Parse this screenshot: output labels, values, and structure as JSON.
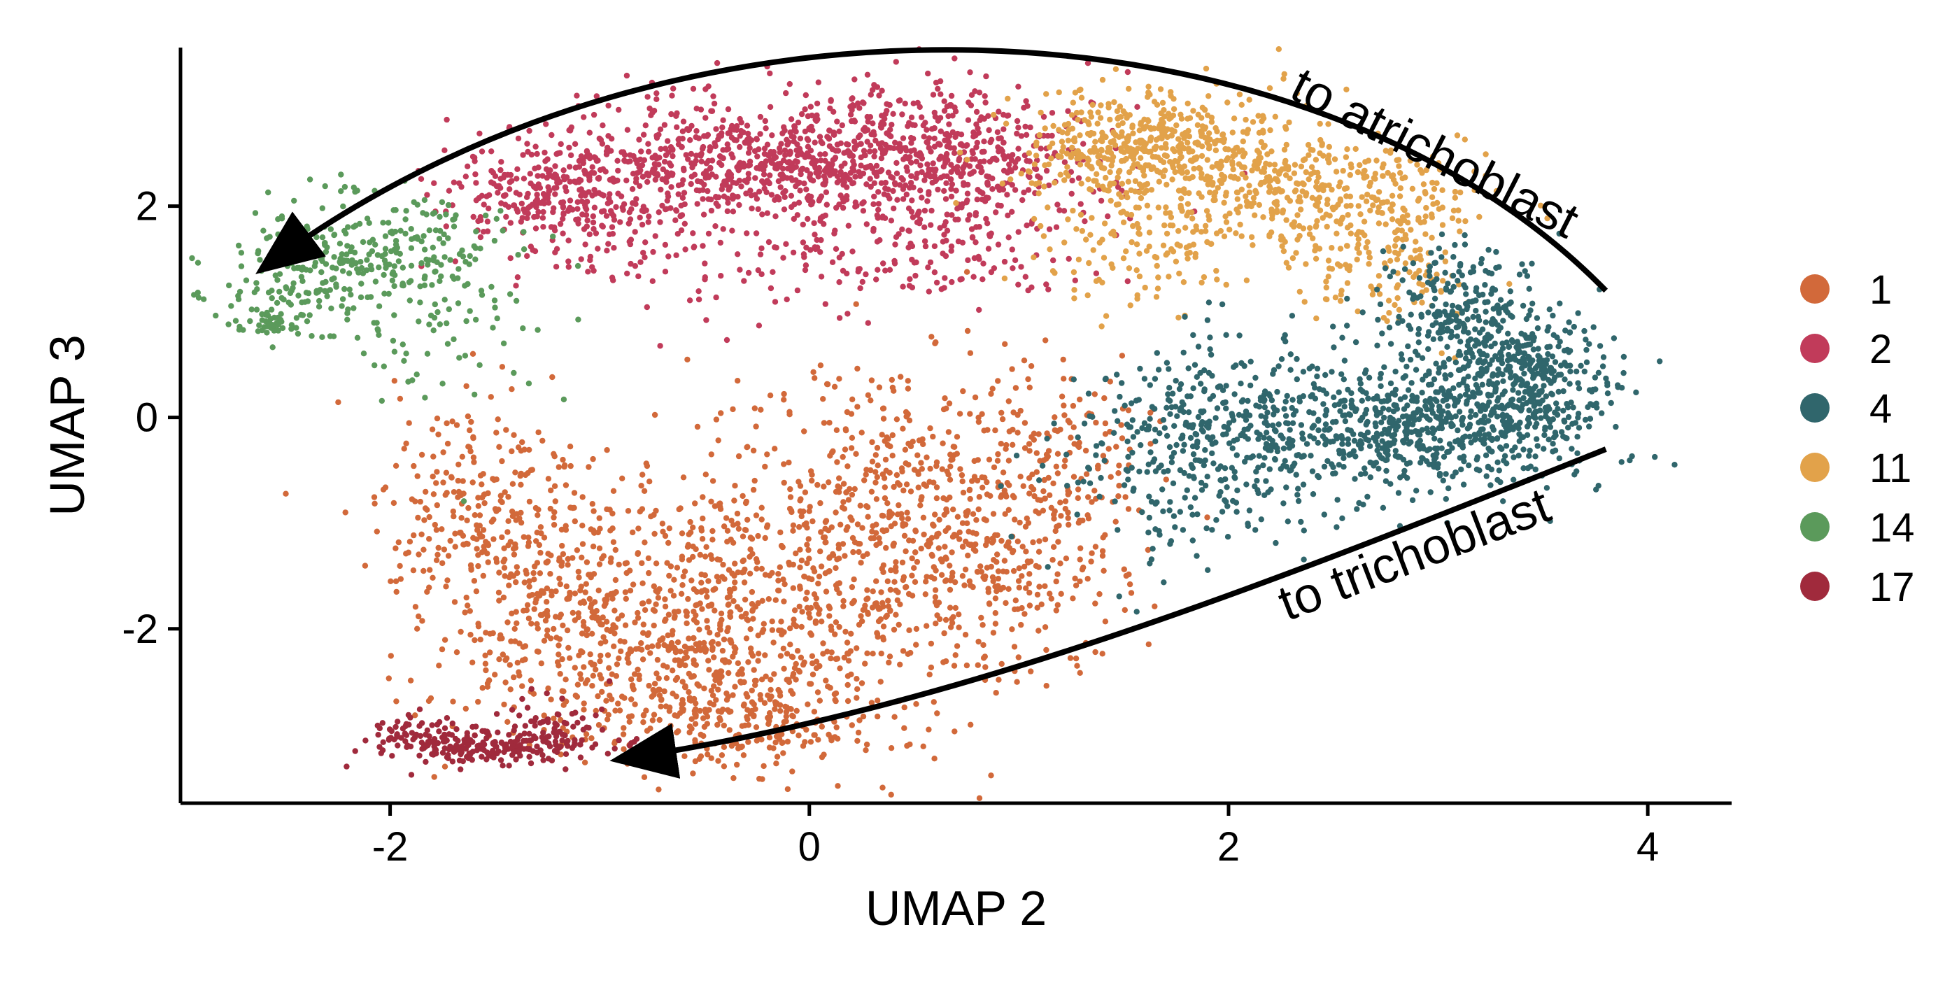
{
  "chart_data": {
    "type": "scatter",
    "title": "",
    "xlabel": "UMAP 2",
    "ylabel": "UMAP 3",
    "xlim": [
      -3.0,
      4.4
    ],
    "ylim": [
      -3.65,
      3.5
    ],
    "xticks": [
      -2,
      0,
      2,
      4
    ],
    "xtick_labels": [
      "-2",
      "0",
      "2",
      "4"
    ],
    "yticks": [
      -2,
      0,
      2
    ],
    "ytick_labels": [
      "-2",
      "0",
      "2"
    ],
    "grid": false,
    "legend_position": "right",
    "annotations": [
      {
        "text": "to atrichoblast",
        "arrow_from": [
          3.8,
          1.2
        ],
        "arrow_to": [
          -2.7,
          1.3
        ]
      },
      {
        "text": "to trichoblast",
        "arrow_from": [
          3.8,
          -0.3
        ],
        "arrow_to": [
          -1.0,
          -3.3
        ]
      }
    ],
    "series": [
      {
        "name": "1",
        "color": "#D2693A",
        "clusters": [
          {
            "cx": -1.6,
            "cy": -1.0,
            "sx": 0.22,
            "sy": 0.6,
            "n": 220
          },
          {
            "cx": -1.1,
            "cy": -1.6,
            "sx": 0.35,
            "sy": 0.6,
            "n": 320
          },
          {
            "cx": -0.7,
            "cy": -2.4,
            "sx": 0.45,
            "sy": 0.45,
            "n": 380
          },
          {
            "cx": -0.1,
            "cy": -1.6,
            "sx": 0.45,
            "sy": 0.7,
            "n": 520
          },
          {
            "cx": 0.5,
            "cy": -0.7,
            "sx": 0.4,
            "sy": 0.7,
            "n": 380
          },
          {
            "cx": 0.9,
            "cy": -1.4,
            "sx": 0.3,
            "sy": 0.45,
            "n": 200
          },
          {
            "cx": 1.2,
            "cy": -0.4,
            "sx": 0.25,
            "sy": 0.45,
            "n": 140
          },
          {
            "cx": -0.3,
            "cy": -2.9,
            "sx": 0.35,
            "sy": 0.2,
            "n": 160
          }
        ]
      },
      {
        "name": "2",
        "color": "#C13B5A",
        "clusters": [
          {
            "cx": -1.2,
            "cy": 2.1,
            "sx": 0.3,
            "sy": 0.25,
            "n": 300
          },
          {
            "cx": -0.5,
            "cy": 2.4,
            "sx": 0.4,
            "sy": 0.3,
            "n": 420
          },
          {
            "cx": 0.3,
            "cy": 2.5,
            "sx": 0.45,
            "sy": 0.3,
            "n": 520
          },
          {
            "cx": 0.8,
            "cy": 2.3,
            "sx": 0.3,
            "sy": 0.4,
            "n": 260
          },
          {
            "cx": 0.4,
            "cy": 1.6,
            "sx": 0.45,
            "sy": 0.3,
            "n": 140
          },
          {
            "cx": -0.6,
            "cy": 1.4,
            "sx": 0.4,
            "sy": 0.3,
            "n": 60
          }
        ]
      },
      {
        "name": "4",
        "color": "#30666C",
        "clusters": [
          {
            "cx": 3.4,
            "cy": 0.3,
            "sx": 0.2,
            "sy": 0.4,
            "n": 480
          },
          {
            "cx": 3.1,
            "cy": 1.0,
            "sx": 0.18,
            "sy": 0.35,
            "n": 220
          },
          {
            "cx": 2.9,
            "cy": -0.1,
            "sx": 0.3,
            "sy": 0.3,
            "n": 340
          },
          {
            "cx": 2.3,
            "cy": -0.1,
            "sx": 0.35,
            "sy": 0.4,
            "n": 320
          },
          {
            "cx": 1.8,
            "cy": -0.3,
            "sx": 0.3,
            "sy": 0.5,
            "n": 280
          },
          {
            "cx": 3.9,
            "cy": -0.4,
            "sx": 0.1,
            "sy": 0.05,
            "n": 6
          }
        ]
      },
      {
        "name": "11",
        "color": "#E2A24A",
        "clusters": [
          {
            "cx": 1.5,
            "cy": 2.6,
            "sx": 0.25,
            "sy": 0.25,
            "n": 320
          },
          {
            "cx": 2.0,
            "cy": 2.4,
            "sx": 0.3,
            "sy": 0.3,
            "n": 300
          },
          {
            "cx": 2.6,
            "cy": 2.0,
            "sx": 0.3,
            "sy": 0.3,
            "n": 280
          },
          {
            "cx": 1.6,
            "cy": 1.7,
            "sx": 0.3,
            "sy": 0.35,
            "n": 150
          },
          {
            "cx": 2.8,
            "cy": 1.3,
            "sx": 0.2,
            "sy": 0.2,
            "n": 80
          }
        ]
      },
      {
        "name": "14",
        "color": "#5B9A5B",
        "clusters": [
          {
            "cx": -2.4,
            "cy": 1.3,
            "sx": 0.2,
            "sy": 0.25,
            "n": 150
          },
          {
            "cx": -2.0,
            "cy": 1.6,
            "sx": 0.25,
            "sy": 0.3,
            "n": 170
          },
          {
            "cx": -1.8,
            "cy": 1.0,
            "sx": 0.25,
            "sy": 0.4,
            "n": 80
          },
          {
            "cx": -2.6,
            "cy": 0.9,
            "sx": 0.08,
            "sy": 0.06,
            "n": 40
          }
        ]
      },
      {
        "name": "17",
        "color": "#A02A3C",
        "clusters": [
          {
            "cx": -1.5,
            "cy": -3.1,
            "sx": 0.25,
            "sy": 0.08,
            "n": 220
          },
          {
            "cx": -1.9,
            "cy": -3.0,
            "sx": 0.12,
            "sy": 0.1,
            "n": 50
          },
          {
            "cx": -1.2,
            "cy": -2.9,
            "sx": 0.15,
            "sy": 0.15,
            "n": 40
          }
        ]
      }
    ]
  }
}
